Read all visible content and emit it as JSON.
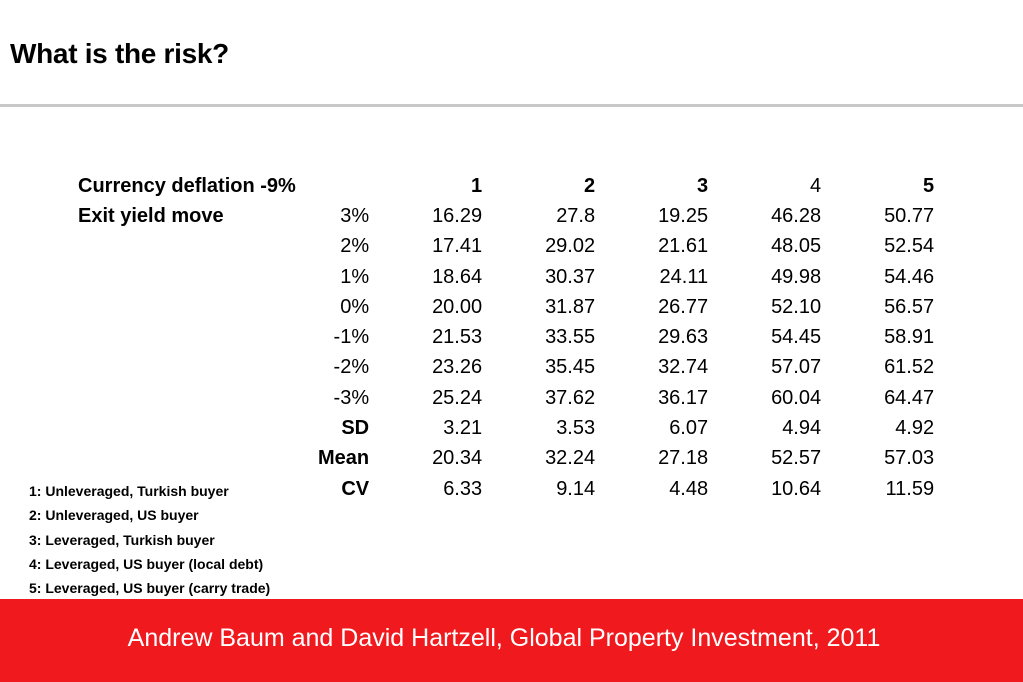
{
  "title": "What is the risk?",
  "table": {
    "header": {
      "label": "Currency deflation -9%",
      "columns": [
        {
          "text": "1",
          "bold": true
        },
        {
          "text": "2",
          "bold": true
        },
        {
          "text": "3",
          "bold": true
        },
        {
          "text": "4",
          "bold": false
        },
        {
          "text": "5",
          "bold": true
        }
      ]
    },
    "row_group_label": "Exit yield move",
    "rows": [
      {
        "param": "3%",
        "bold": false,
        "values": [
          "16.29",
          "27.8",
          "19.25",
          "46.28",
          "50.77"
        ]
      },
      {
        "param": "2%",
        "bold": false,
        "values": [
          "17.41",
          "29.02",
          "21.61",
          "48.05",
          "52.54"
        ]
      },
      {
        "param": "1%",
        "bold": false,
        "values": [
          "18.64",
          "30.37",
          "24.11",
          "49.98",
          "54.46"
        ]
      },
      {
        "param": "0%",
        "bold": false,
        "values": [
          "20.00",
          "31.87",
          "26.77",
          "52.10",
          "56.57"
        ]
      },
      {
        "param": "-1%",
        "bold": false,
        "values": [
          "21.53",
          "33.55",
          "29.63",
          "54.45",
          "58.91"
        ]
      },
      {
        "param": "-2%",
        "bold": false,
        "values": [
          "23.26",
          "35.45",
          "32.74",
          "57.07",
          "61.52"
        ]
      },
      {
        "param": "-3%",
        "bold": false,
        "values": [
          "25.24",
          "37.62",
          "36.17",
          "60.04",
          "64.47"
        ]
      },
      {
        "param": "SD",
        "bold": true,
        "values": [
          "3.21",
          "3.53",
          "6.07",
          "4.94",
          "4.92"
        ]
      },
      {
        "param": "Mean",
        "bold": true,
        "values": [
          "20.34",
          "32.24",
          "27.18",
          "52.57",
          "57.03"
        ]
      },
      {
        "param": "CV",
        "bold": true,
        "values": [
          "6.33",
          "9.14",
          "4.48",
          "10.64",
          "11.59"
        ]
      }
    ]
  },
  "legend": [
    "1: Unleveraged, Turkish buyer",
    "2: Unleveraged, US buyer",
    "3: Leveraged, Turkish buyer",
    "4: Leveraged, US buyer (local debt)",
    "5: Leveraged, US buyer (carry trade)"
  ],
  "footer": "Andrew Baum and David Hartzell, Global Property Investment, 2011",
  "colors": {
    "footer_band": "#f0191e",
    "rule": "#c8c8c8"
  }
}
